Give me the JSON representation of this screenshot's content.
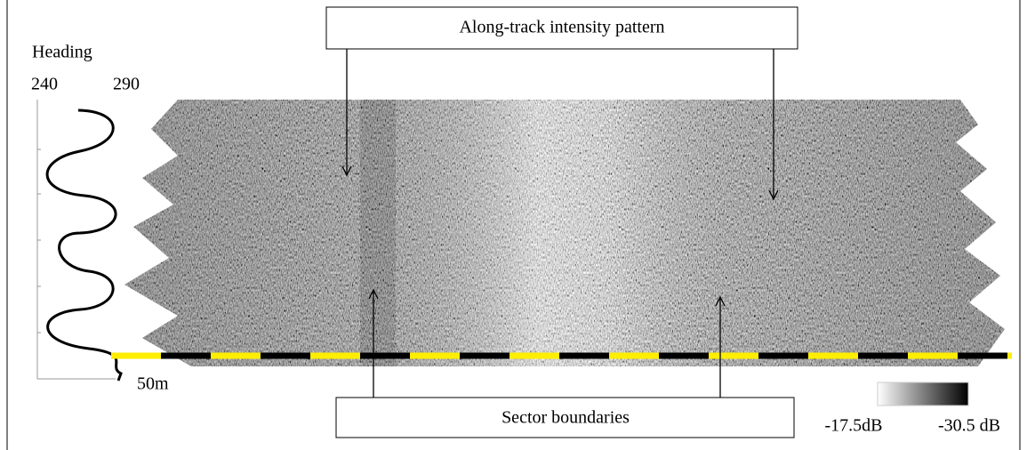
{
  "heading": {
    "label": "Heading",
    "min": "240",
    "max": "290"
  },
  "callouts": {
    "top": "Along-track intensity pattern",
    "bottom": "Sector boundaries"
  },
  "scale_bar": "50m",
  "colorbar": {
    "low": "-17.5dB",
    "high": "-30.5 dB"
  }
}
